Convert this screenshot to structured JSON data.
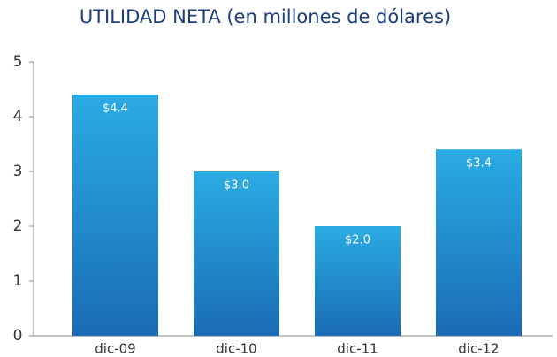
{
  "chart_data": {
    "type": "bar",
    "title": "UTILIDAD NETA (en millones de dólares)",
    "categories": [
      "dic-09",
      "dic-10",
      "dic-11",
      "dic-12"
    ],
    "values": [
      4.4,
      3.0,
      2.0,
      3.4
    ],
    "value_labels": [
      "$4.4",
      "$3.0",
      "$2.0",
      "$3.4"
    ],
    "color": [
      "#2aabe3",
      "#1a6cb5"
    ],
    "ylim": [
      0,
      5
    ],
    "yticks": [
      0,
      1,
      2,
      3,
      4,
      5
    ]
  }
}
